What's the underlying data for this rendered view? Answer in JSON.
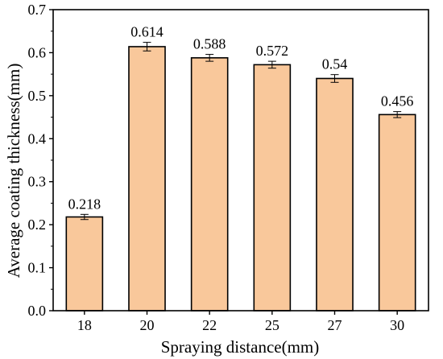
{
  "chart_data": {
    "type": "bar",
    "title": "",
    "xlabel": "Spraying distance(mm)",
    "ylabel": "Average coating thickness(mm)",
    "categories": [
      "18",
      "20",
      "22",
      "25",
      "27",
      "30"
    ],
    "values": [
      0.218,
      0.614,
      0.588,
      0.572,
      0.54,
      0.456
    ],
    "data_labels": [
      "0.218",
      "0.614",
      "0.588",
      "0.572",
      "0.54",
      "0.456"
    ],
    "error": [
      0.006,
      0.01,
      0.008,
      0.008,
      0.009,
      0.007
    ],
    "ylim": [
      0,
      0.7
    ],
    "yticks": [
      "0.0",
      "0.1",
      "0.2",
      "0.3",
      "0.4",
      "0.5",
      "0.6",
      "0.7"
    ],
    "grid": false,
    "legend": "none",
    "bar_color": "#F9C89B",
    "bar_edge_color": "#000000"
  }
}
